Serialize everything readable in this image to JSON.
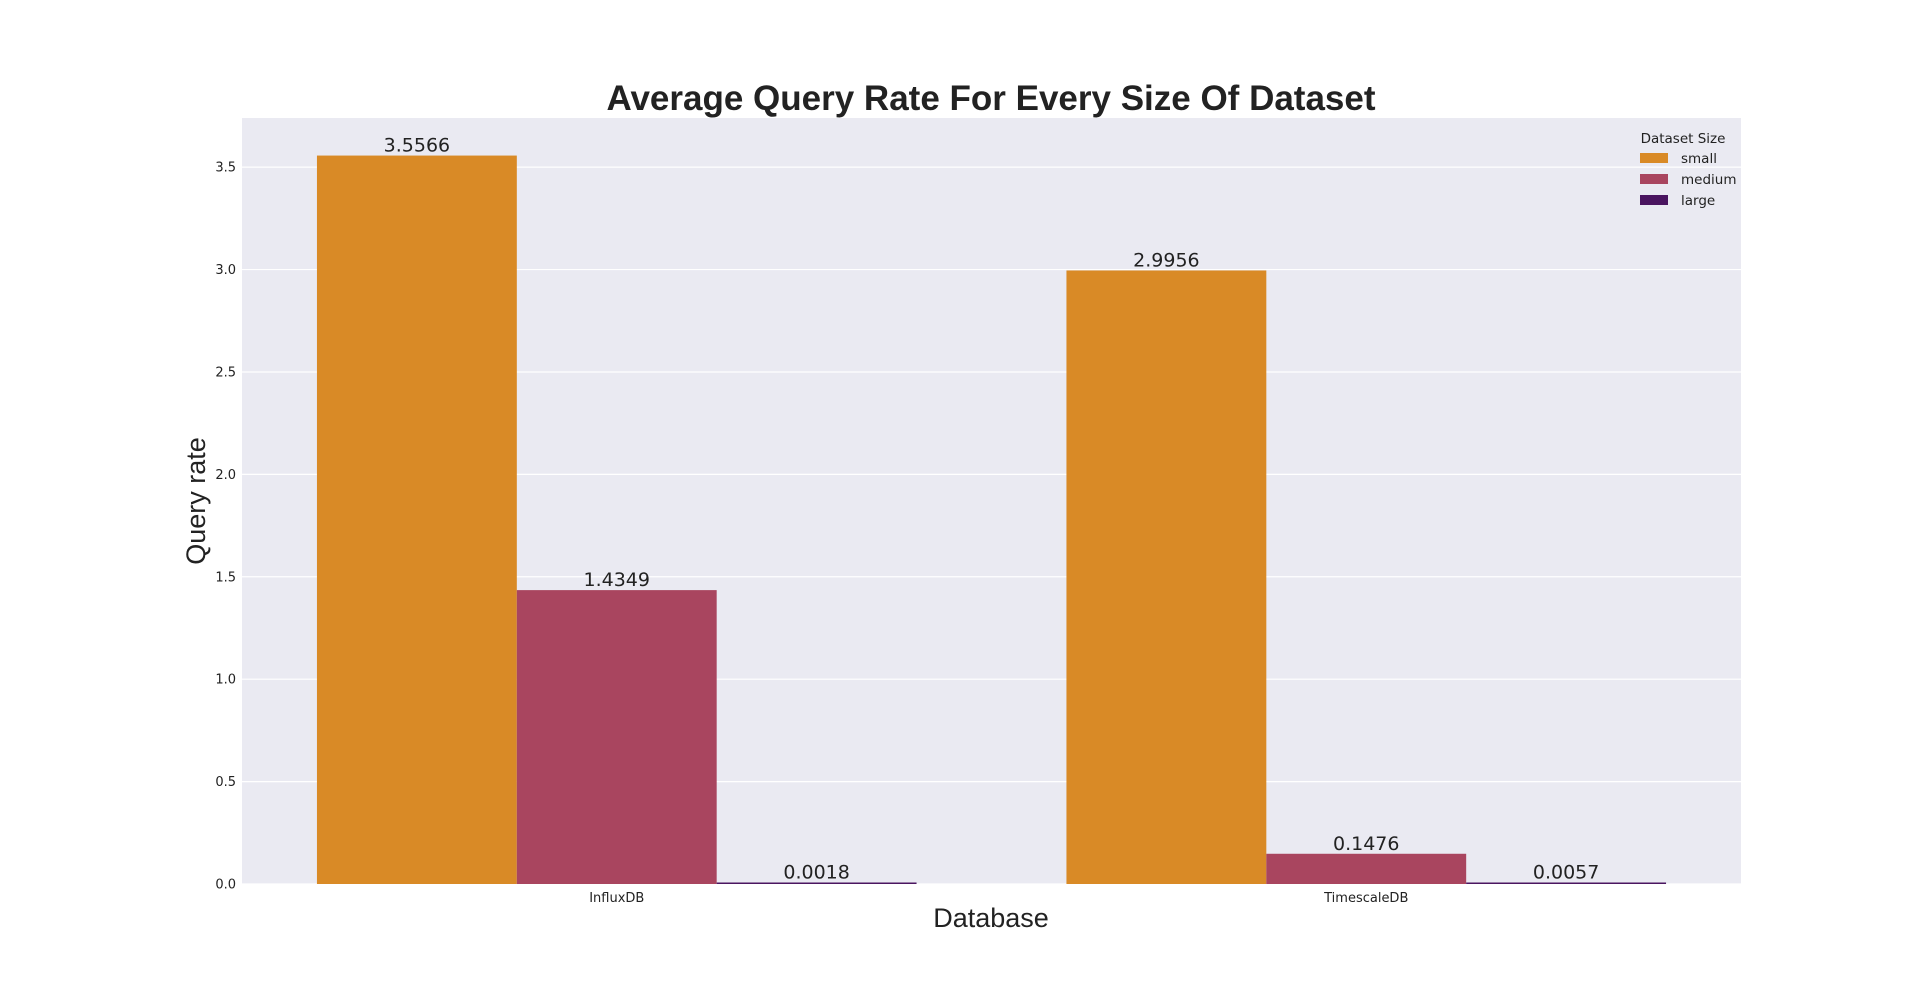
{
  "chart_data": {
    "type": "bar",
    "title": "Average Query Rate For Every Size Of Dataset",
    "xlabel": "Database",
    "ylabel": "Query rate",
    "categories": [
      "InfluxDB",
      "TimescaleDB"
    ],
    "series": [
      {
        "name": "small",
        "values": [
          3.5566,
          2.9956
        ],
        "labels": [
          "3.5566",
          "2.9956"
        ],
        "color": "#d98a26"
      },
      {
        "name": "medium",
        "values": [
          1.4349,
          0.1476
        ],
        "labels": [
          "1.4349",
          "0.1476"
        ],
        "color": "#a9455f"
      },
      {
        "name": "large",
        "values": [
          0.0018,
          0.0057
        ],
        "labels": [
          "0.0018",
          "0.0057"
        ],
        "color": "#4a1560"
      }
    ],
    "ylim": [
      0,
      3.74
    ],
    "yticks": [
      0.0,
      0.5,
      1.0,
      1.5,
      2.0,
      2.5,
      3.0,
      3.5
    ],
    "ytick_labels": [
      "0.0",
      "0.5",
      "1.0",
      "1.5",
      "2.0",
      "2.5",
      "3.0",
      "3.5"
    ],
    "grid": true,
    "legend": {
      "title": "Dataset Size",
      "placement": "top-right"
    },
    "background_color": "#eaeaf2",
    "grid_color": "#ffffff"
  }
}
